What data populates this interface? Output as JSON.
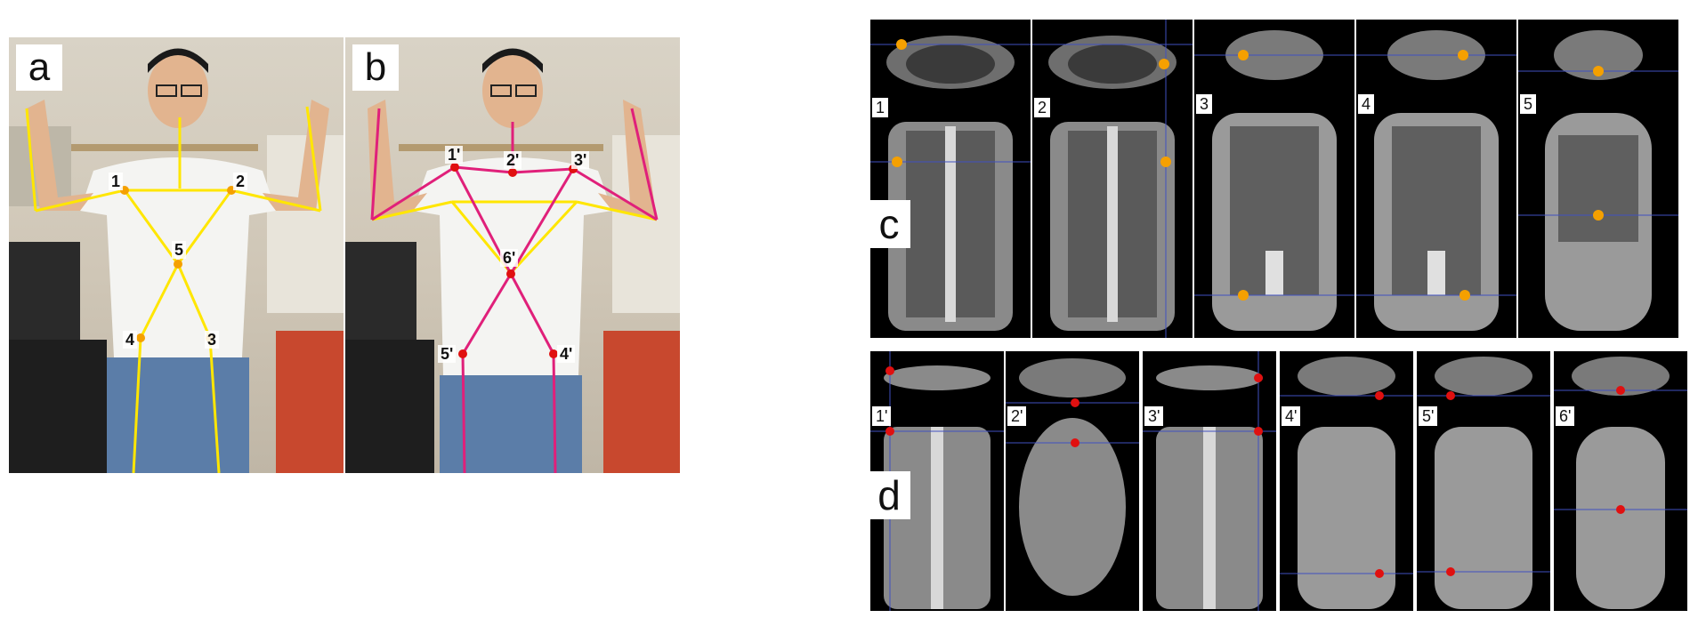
{
  "panels": {
    "a": {
      "letter": "a",
      "points": [
        "1",
        "2",
        "3",
        "4",
        "5"
      ]
    },
    "b": {
      "letter": "b",
      "points": [
        "1'",
        "2'",
        "3'",
        "4'",
        "5'",
        "6'"
      ]
    },
    "c": {
      "letter": "c",
      "numbers": [
        "1",
        "2",
        "3",
        "4",
        "5"
      ]
    },
    "d": {
      "letter": "d",
      "numbers": [
        "1'",
        "2'",
        "3'",
        "4'",
        "5'",
        "6'"
      ]
    }
  },
  "colors": {
    "yellow_line": "#ffe600",
    "magenta_line": "#e0207a",
    "orange_marker": "#f5a000",
    "red_marker": "#e01010",
    "ct_bg": "#000000"
  }
}
